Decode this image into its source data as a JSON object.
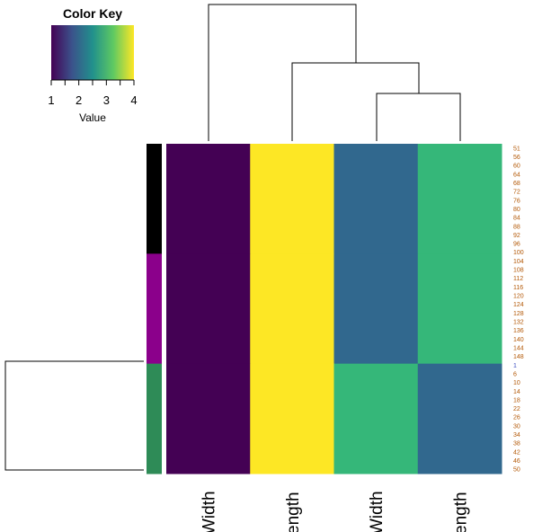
{
  "chart_data": {
    "type": "heatmap",
    "color_key": {
      "title": "Color Key",
      "xlabel": "Value",
      "range": [
        1,
        4
      ],
      "ticks": [
        "1",
        "2",
        "3",
        "4"
      ],
      "palette": [
        "#440154",
        "#31688e",
        "#35b779",
        "#fde725"
      ]
    },
    "columns": [
      "Width",
      "ength",
      "Width",
      "ength"
    ],
    "row_groups": [
      {
        "rows": "51-100",
        "side_color": "#000000",
        "values": [
          1,
          4,
          2,
          3
        ]
      },
      {
        "rows": "101-150",
        "side_color": "#8b008b",
        "values": [
          1,
          4,
          2,
          3
        ]
      },
      {
        "rows": "1-50",
        "side_color": "#2e8b57",
        "values": [
          1,
          4,
          3,
          2
        ]
      }
    ],
    "row_labels": [
      {
        "text": "51",
        "color": "#b35806"
      },
      {
        "text": "56",
        "color": "#b35806"
      },
      {
        "text": "60",
        "color": "#b35806"
      },
      {
        "text": "64",
        "color": "#b35806"
      },
      {
        "text": "68",
        "color": "#b35806"
      },
      {
        "text": "72",
        "color": "#b35806"
      },
      {
        "text": "76",
        "color": "#b35806"
      },
      {
        "text": "80",
        "color": "#b35806"
      },
      {
        "text": "84",
        "color": "#b35806"
      },
      {
        "text": "88",
        "color": "#b35806"
      },
      {
        "text": "92",
        "color": "#b35806"
      },
      {
        "text": "96",
        "color": "#b35806"
      },
      {
        "text": "100",
        "color": "#b35806"
      },
      {
        "text": "104",
        "color": "#b35806"
      },
      {
        "text": "108",
        "color": "#b35806"
      },
      {
        "text": "112",
        "color": "#b35806"
      },
      {
        "text": "116",
        "color": "#b35806"
      },
      {
        "text": "120",
        "color": "#b35806"
      },
      {
        "text": "124",
        "color": "#b35806"
      },
      {
        "text": "128",
        "color": "#b35806"
      },
      {
        "text": "132",
        "color": "#b35806"
      },
      {
        "text": "136",
        "color": "#b35806"
      },
      {
        "text": "140",
        "color": "#b35806"
      },
      {
        "text": "144",
        "color": "#b35806"
      },
      {
        "text": "148",
        "color": "#b35806"
      },
      {
        "text": "1",
        "color": "#3b4cc0"
      },
      {
        "text": "6",
        "color": "#b35806"
      },
      {
        "text": "10",
        "color": "#b35806"
      },
      {
        "text": "14",
        "color": "#b35806"
      },
      {
        "text": "18",
        "color": "#b35806"
      },
      {
        "text": "22",
        "color": "#b35806"
      },
      {
        "text": "26",
        "color": "#b35806"
      },
      {
        "text": "30",
        "color": "#b35806"
      },
      {
        "text": "34",
        "color": "#b35806"
      },
      {
        "text": "38",
        "color": "#b35806"
      },
      {
        "text": "42",
        "color": "#b35806"
      },
      {
        "text": "46",
        "color": "#b35806"
      },
      {
        "text": "50",
        "color": "#b35806"
      }
    ]
  }
}
